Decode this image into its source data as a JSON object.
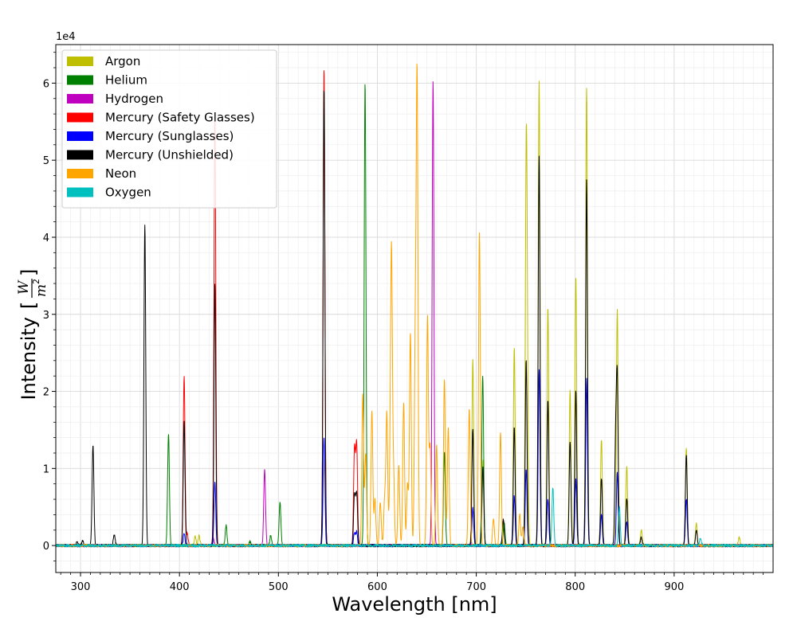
{
  "chart_data": {
    "type": "line",
    "xlabel": "Wavelength [nm]",
    "ylabel": "Intensity",
    "ylabel_unit": "W/m²",
    "y_offset_text": "1e4",
    "xlim": [
      275,
      1000
    ],
    "ylim": [
      -3500,
      65000
    ],
    "x_ticks": [
      300,
      400,
      500,
      600,
      700,
      800,
      900
    ],
    "y_ticks": [
      0,
      10000,
      20000,
      30000,
      40000,
      50000,
      60000
    ],
    "y_tick_labels": [
      "0",
      "1",
      "2",
      "3",
      "4",
      "5",
      "6"
    ],
    "grid": true,
    "legend_placement": "top-left",
    "series": [
      {
        "name": "Argon",
        "color": "#bfbf00",
        "peaks": [
          [
            415.9,
            1200
          ],
          [
            419.8,
            1300
          ],
          [
            696.5,
            24000
          ],
          [
            706.7,
            11000
          ],
          [
            727.3,
            3000
          ],
          [
            738.4,
            25600
          ],
          [
            750.4,
            43800
          ],
          [
            751.5,
            20000
          ],
          [
            763.5,
            60200
          ],
          [
            772.4,
            31000
          ],
          [
            794.8,
            20000
          ],
          [
            800.6,
            35000
          ],
          [
            811.5,
            59500
          ],
          [
            826.5,
            13800
          ],
          [
            842.5,
            30600
          ],
          [
            852.1,
            10400
          ],
          [
            866.8,
            2000
          ],
          [
            912.3,
            12600
          ],
          [
            922.4,
            2800
          ],
          [
            965.8,
            1000
          ]
        ]
      },
      {
        "name": "Helium",
        "color": "#008000",
        "peaks": [
          [
            388.9,
            14500
          ],
          [
            447.1,
            2600
          ],
          [
            471.3,
            500
          ],
          [
            492.2,
            1300
          ],
          [
            501.6,
            5700
          ],
          [
            587.6,
            60100
          ],
          [
            667.8,
            12200
          ],
          [
            706.5,
            22100
          ],
          [
            728.1,
            3000
          ]
        ]
      },
      {
        "name": "Hydrogen",
        "color": "#bf00bf",
        "peaks": [
          [
            434.0,
            1000
          ],
          [
            486.1,
            9900
          ],
          [
            656.3,
            60300
          ]
        ]
      },
      {
        "name": "Mercury (Safety Glasses)",
        "color": "#ff0000",
        "peaks": [
          [
            404.7,
            22000
          ],
          [
            407.8,
            1500
          ],
          [
            435.8,
            56000
          ],
          [
            546.1,
            62000
          ],
          [
            576.9,
            12500
          ],
          [
            579.1,
            13000
          ]
        ]
      },
      {
        "name": "Mercury (Sunglasses)",
        "color": "#0000ff",
        "peaks": [
          [
            404.7,
            1500
          ],
          [
            435.8,
            8200
          ],
          [
            546.1,
            14200
          ],
          [
            576.9,
            1600
          ],
          [
            579.1,
            1700
          ],
          [
            696.5,
            4800
          ],
          [
            738.4,
            6400
          ],
          [
            750.4,
            10000
          ],
          [
            763.5,
            23000
          ],
          [
            772.4,
            6000
          ],
          [
            800.6,
            8600
          ],
          [
            811.5,
            21600
          ],
          [
            826.5,
            4000
          ],
          [
            842.5,
            9400
          ],
          [
            852.1,
            3000
          ],
          [
            912.3,
            6000
          ]
        ]
      },
      {
        "name": "Mercury (Unshielded)",
        "color": "#000000",
        "peaks": [
          [
            296.7,
            500
          ],
          [
            302.2,
            600
          ],
          [
            312.6,
            13100
          ],
          [
            334.1,
            1400
          ],
          [
            365.0,
            41600
          ],
          [
            404.7,
            16000
          ],
          [
            435.8,
            34000
          ],
          [
            546.1,
            59500
          ],
          [
            576.9,
            6600
          ],
          [
            579.1,
            6800
          ],
          [
            696.5,
            15100
          ],
          [
            706.7,
            10200
          ],
          [
            727.3,
            3400
          ],
          [
            738.4,
            15400
          ],
          [
            750.4,
            24000
          ],
          [
            763.5,
            50600
          ],
          [
            772.4,
            18800
          ],
          [
            794.8,
            13500
          ],
          [
            800.6,
            20000
          ],
          [
            811.5,
            47300
          ],
          [
            826.5,
            8800
          ],
          [
            840.8,
            12400
          ],
          [
            842.5,
            20800
          ],
          [
            852.1,
            6200
          ],
          [
            866.8,
            1000
          ],
          [
            912.3,
            11800
          ],
          [
            922.4,
            2000
          ]
        ]
      },
      {
        "name": "Neon",
        "color": "#ffa500",
        "peaks": [
          [
            585.2,
            19500
          ],
          [
            588.2,
            12000
          ],
          [
            594.5,
            17500
          ],
          [
            597.6,
            6000
          ],
          [
            603.0,
            5700
          ],
          [
            607.4,
            6000
          ],
          [
            609.6,
            17000
          ],
          [
            612.8,
            7000
          ],
          [
            614.3,
            37000
          ],
          [
            616.4,
            9000
          ],
          [
            621.7,
            10500
          ],
          [
            626.6,
            18700
          ],
          [
            630.5,
            8000
          ],
          [
            633.4,
            27500
          ],
          [
            638.3,
            25000
          ],
          [
            640.2,
            59800
          ],
          [
            650.7,
            29700
          ],
          [
            653.3,
            12700
          ],
          [
            659.9,
            13000
          ],
          [
            667.8,
            21700
          ],
          [
            671.7,
            15200
          ],
          [
            692.9,
            17800
          ],
          [
            703.2,
            40500
          ],
          [
            717.4,
            3500
          ],
          [
            724.5,
            14600
          ],
          [
            743.9,
            4000
          ],
          [
            747.2,
            2500
          ]
        ]
      },
      {
        "name": "Oxygen",
        "color": "#00bfbf",
        "peaks": [
          [
            777.4,
            7600
          ],
          [
            844.6,
            5000
          ],
          [
            926.6,
            1000
          ]
        ]
      }
    ]
  }
}
